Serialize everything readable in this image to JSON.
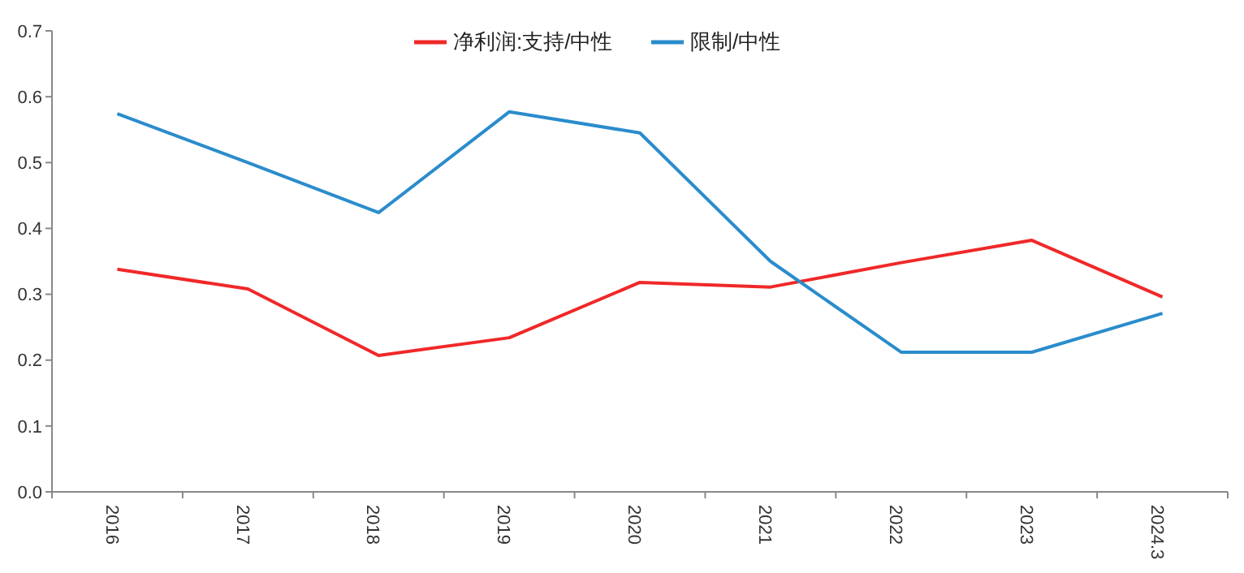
{
  "chart_data": {
    "type": "line",
    "categories": [
      "2016",
      "2017",
      "2018",
      "2019",
      "2020",
      "2021",
      "2022",
      "2023",
      "2024.3"
    ],
    "series": [
      {
        "name": "净利润:支持/中性",
        "color": "#f02828",
        "values": [
          0.338,
          0.308,
          0.207,
          0.234,
          0.318,
          0.311,
          0.348,
          0.382,
          0.296
        ]
      },
      {
        "name": "限制/中性",
        "color": "#2a8ccc",
        "values": [
          0.574,
          0.5,
          0.424,
          0.577,
          0.545,
          0.35,
          0.212,
          0.212,
          0.271
        ]
      }
    ],
    "ylim": [
      0,
      0.7
    ],
    "yticks": [
      {
        "value": 0,
        "label": "0.0"
      },
      {
        "value": 0.1,
        "label": "0.1"
      },
      {
        "value": 0.2,
        "label": "0.2"
      },
      {
        "value": 0.3,
        "label": "0.3"
      },
      {
        "value": 0.4,
        "label": "0.4"
      },
      {
        "value": 0.5,
        "label": "0.5"
      },
      {
        "value": 0.6,
        "label": "0.6"
      },
      {
        "value": 0.7,
        "label": "0.7"
      }
    ],
    "legend": "top",
    "grid": false,
    "marker": "none",
    "line_style": "solid"
  }
}
